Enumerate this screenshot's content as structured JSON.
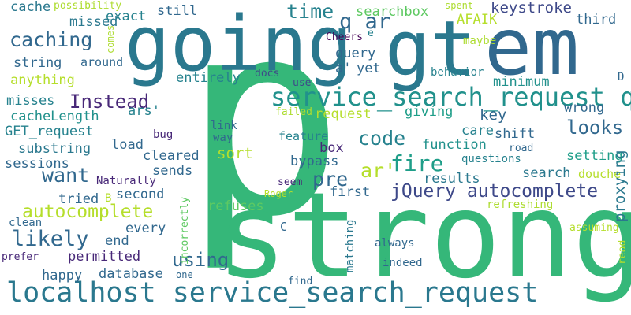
{
  "words": [
    {
      "id": "p",
      "text": "p",
      "color": "#35b779"
    },
    {
      "id": "strong",
      "text": "strong",
      "color": "#35b779"
    },
    {
      "id": "going",
      "text": "going",
      "color": "#2a788e"
    },
    {
      "id": "gt",
      "text": "gt",
      "color": "#2a788e"
    },
    {
      "id": "em",
      "text": "em",
      "color": "#31688e"
    },
    {
      "id": "localhost-ssr",
      "text": "localhost service_search_request",
      "color": "#2a788e"
    },
    {
      "id": "ssr-q",
      "text": "service_search_request q",
      "color": "#21918c"
    },
    {
      "id": "jquery-autocomplete",
      "text": "jQuery autocomplete",
      "color": "#3e4989"
    },
    {
      "id": "autocomplete",
      "text": "autocomplete",
      "color": "#b5de2b"
    },
    {
      "id": "instead",
      "text": "Instead",
      "color": "#482878"
    },
    {
      "id": "time",
      "text": "time",
      "color": "#26828e"
    },
    {
      "id": "q-ar",
      "text": "q ar",
      "color": "#31688e"
    },
    {
      "id": "caching",
      "text": "caching",
      "color": "#31688e"
    },
    {
      "id": "code",
      "text": "code",
      "color": "#26828e"
    },
    {
      "id": "fire",
      "text": "fire",
      "color": "#1f9e89"
    },
    {
      "id": "ar-prime",
      "text": "ar'",
      "color": "#b5de2b"
    },
    {
      "id": "pre",
      "text": "pre",
      "color": "#31688e"
    },
    {
      "id": "want",
      "text": "want",
      "color": "#31688e"
    },
    {
      "id": "likely",
      "text": "likely",
      "color": "#31688e"
    },
    {
      "id": "using",
      "text": "using",
      "color": "#31688e"
    },
    {
      "id": "looks",
      "text": "looks",
      "color": "#31688e"
    },
    {
      "id": "proxying",
      "text": "proxying",
      "color": "#2a788e"
    },
    {
      "id": "cache",
      "text": "cache",
      "color": "#2a788e"
    },
    {
      "id": "possibility",
      "text": "possibility",
      "color": "#addc30"
    },
    {
      "id": "missed",
      "text": "missed",
      "color": "#2a788e"
    },
    {
      "id": "exact",
      "text": "exact",
      "color": "#26828e"
    },
    {
      "id": "still",
      "text": "still",
      "color": "#31688e"
    },
    {
      "id": "searchbox",
      "text": "searchbox",
      "color": "#5ec962"
    },
    {
      "id": "spent",
      "text": "spent",
      "color": "#addc30"
    },
    {
      "id": "keystroke",
      "text": "keystroke",
      "color": "#3e4989"
    },
    {
      "id": "afaik",
      "text": "AFAIK",
      "color": "#b5de2b"
    },
    {
      "id": "third",
      "text": "third",
      "color": "#31688e"
    },
    {
      "id": "cheers",
      "text": "Cheers",
      "color": "#440154"
    },
    {
      "id": "e",
      "text": "e",
      "color": "#26828e"
    },
    {
      "id": "maybe",
      "text": "maybe",
      "color": "#addc30"
    },
    {
      "id": "comes",
      "text": "comes",
      "color": "#addc30"
    },
    {
      "id": "string",
      "text": "string",
      "color": "#31688e"
    },
    {
      "id": "around",
      "text": "around",
      "color": "#31688e"
    },
    {
      "id": "query",
      "text": "query",
      "color": "#31688e"
    },
    {
      "id": "a-prime",
      "text": "a'",
      "color": "#31688e"
    },
    {
      "id": "yet",
      "text": "yet",
      "color": "#31688e"
    },
    {
      "id": "behavior",
      "text": "behavior",
      "color": "#26828e"
    },
    {
      "id": "anything",
      "text": "anything",
      "color": "#b5de2b"
    },
    {
      "id": "entirely",
      "text": "entirely",
      "color": "#26828e"
    },
    {
      "id": "docs",
      "text": "docs",
      "color": "#3e4989"
    },
    {
      "id": "use",
      "text": "use",
      "color": "#3e4989"
    },
    {
      "id": "minimum",
      "text": "minimum",
      "color": "#21918c"
    },
    {
      "id": "d",
      "text": "D",
      "color": "#31688e"
    },
    {
      "id": "misses",
      "text": "misses",
      "color": "#26828e"
    },
    {
      "id": "ars-prime",
      "text": "ars'",
      "color": "#26828e"
    },
    {
      "id": "request",
      "text": "request",
      "color": "#b5de2b"
    },
    {
      "id": "giving",
      "text": "giving",
      "color": "#1f9e89"
    },
    {
      "id": "key",
      "text": "key",
      "color": "#31688e"
    },
    {
      "id": "wrong",
      "text": "wrong",
      "color": "#31688e"
    },
    {
      "id": "cachelength",
      "text": "cacheLength",
      "color": "#21918c"
    },
    {
      "id": "get-request",
      "text": "GET_request",
      "color": "#26828e"
    },
    {
      "id": "bug",
      "text": "bug",
      "color": "#482878"
    },
    {
      "id": "link",
      "text": "link",
      "color": "#31688e"
    },
    {
      "id": "way",
      "text": "way",
      "color": "#31688e"
    },
    {
      "id": "care",
      "text": "care",
      "color": "#26828e"
    },
    {
      "id": "shift",
      "text": "shift",
      "color": "#31688e"
    },
    {
      "id": "failed",
      "text": "failed",
      "color": "#addc30"
    },
    {
      "id": "substring",
      "text": "substring",
      "color": "#2a788e"
    },
    {
      "id": "load",
      "text": "load",
      "color": "#31688e"
    },
    {
      "id": "feature",
      "text": "feature",
      "color": "#26828e"
    },
    {
      "id": "box",
      "text": "box",
      "color": "#482878"
    },
    {
      "id": "function",
      "text": "function",
      "color": "#21918c"
    },
    {
      "id": "road",
      "text": "road",
      "color": "#31688e"
    },
    {
      "id": "sessions",
      "text": "sessions",
      "color": "#31688e"
    },
    {
      "id": "cleared",
      "text": "cleared",
      "color": "#31688e"
    },
    {
      "id": "sort",
      "text": "sort",
      "color": "#b5de2b"
    },
    {
      "id": "bypass",
      "text": "bypass",
      "color": "#31688e"
    },
    {
      "id": "setting",
      "text": "setting",
      "color": "#1f9e89"
    },
    {
      "id": "sends",
      "text": "sends",
      "color": "#31688e"
    },
    {
      "id": "questions",
      "text": "questions",
      "color": "#26828e"
    },
    {
      "id": "naturally",
      "text": "Naturally",
      "color": "#482878"
    },
    {
      "id": "seem",
      "text": "seem",
      "color": "#482878"
    },
    {
      "id": "search",
      "text": "search",
      "color": "#2a788e"
    },
    {
      "id": "douche",
      "text": "douche",
      "color": "#b5de2b"
    },
    {
      "id": "tried",
      "text": "tried",
      "color": "#31688e"
    },
    {
      "id": "second",
      "text": "second",
      "color": "#31688e"
    },
    {
      "id": "first",
      "text": "first",
      "color": "#31688e"
    },
    {
      "id": "results",
      "text": "results",
      "color": "#2a788e"
    },
    {
      "id": "clean",
      "text": "clean",
      "color": "#31688e"
    },
    {
      "id": "b",
      "text": "B",
      "color": "#b5de2b"
    },
    {
      "id": "roger",
      "text": "Roger",
      "color": "#b5de2b"
    },
    {
      "id": "refuses",
      "text": "refuses",
      "color": "#5ec962"
    },
    {
      "id": "refreshing",
      "text": "refreshing",
      "color": "#addc30"
    },
    {
      "id": "assuming",
      "text": "assuming",
      "color": "#b5de2b"
    },
    {
      "id": "every",
      "text": "every",
      "color": "#31688e"
    },
    {
      "id": "incorrectly",
      "text": "incorrectly",
      "color": "#5ec962"
    },
    {
      "id": "end",
      "text": "end",
      "color": "#31688e"
    },
    {
      "id": "c",
      "text": "C",
      "color": "#31688e"
    },
    {
      "id": "matching",
      "text": "matching",
      "color": "#2a788e"
    },
    {
      "id": "always",
      "text": "always",
      "color": "#31688e"
    },
    {
      "id": "permitted",
      "text": "permitted",
      "color": "#482878"
    },
    {
      "id": "read",
      "text": "read",
      "color": "#b5de2b"
    },
    {
      "id": "prefer",
      "text": "prefer",
      "color": "#482878"
    },
    {
      "id": "indeed",
      "text": "indeed",
      "color": "#31688e"
    },
    {
      "id": "happy",
      "text": "happy",
      "color": "#31688e"
    },
    {
      "id": "database",
      "text": "database",
      "color": "#31688e"
    },
    {
      "id": "one",
      "text": "one",
      "color": "#31688e"
    },
    {
      "id": "find",
      "text": "find",
      "color": "#31688e"
    }
  ]
}
